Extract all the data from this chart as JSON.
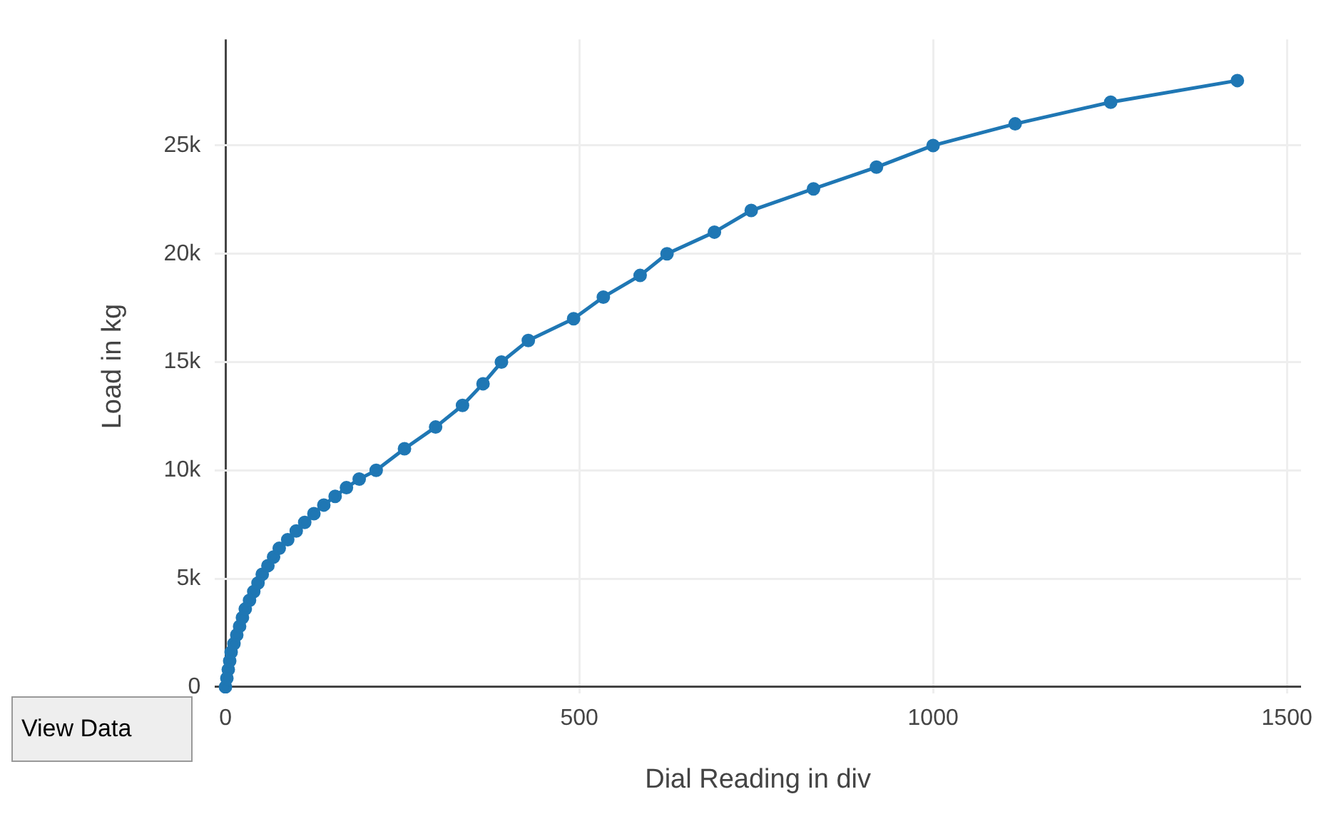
{
  "chart_data": {
    "type": "line",
    "xlabel": "Dial Reading in div",
    "ylabel": "Load in kg",
    "x": [
      0,
      2,
      4,
      6,
      8,
      12,
      16,
      20,
      24,
      28,
      34,
      40,
      46,
      52,
      60,
      68,
      76,
      88,
      100,
      112,
      125,
      139,
      155,
      171,
      189,
      213,
      253,
      297,
      335,
      364,
      390,
      428,
      492,
      534,
      586,
      624,
      691,
      743,
      831,
      920,
      1000,
      1116,
      1251,
      1430
    ],
    "series": [
      {
        "color": "#1f77b4",
        "values": [
          0,
          400,
          800,
          1200,
          1600,
          2000,
          2400,
          2800,
          3200,
          3600,
          4000,
          4400,
          4800,
          5200,
          5600,
          6000,
          6400,
          6800,
          7200,
          7600,
          8000,
          8400,
          8800,
          9200,
          9600,
          10000,
          11000,
          12000,
          13000,
          14000,
          15000,
          16000,
          17000,
          18000,
          19000,
          20000,
          21000,
          22000,
          23000,
          24000,
          25000,
          26000,
          27000,
          28000
        ]
      }
    ],
    "xlim": [
      -15,
      1520
    ],
    "ylim": [
      -300,
      29900
    ],
    "xticks": [
      0,
      500,
      1000,
      1500
    ],
    "yticks": [
      0,
      {
        "value": 5000,
        "label": "5k"
      },
      {
        "value": 10000,
        "label": "10k"
      },
      {
        "value": 15000,
        "label": "15k"
      },
      {
        "value": 20000,
        "label": "20k"
      },
      {
        "value": 25000,
        "label": "25k"
      }
    ],
    "grid": true,
    "marker": "circle",
    "line_style": "solid",
    "legend": false,
    "annotations": [
      "View Data"
    ]
  }
}
